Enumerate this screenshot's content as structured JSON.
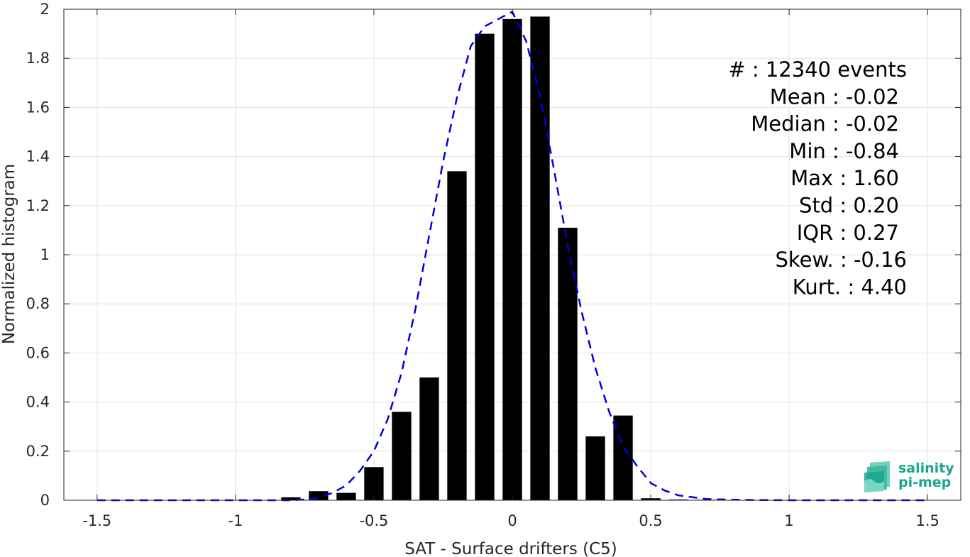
{
  "chart_data": {
    "type": "bar",
    "title": "",
    "xlabel": "SAT - Surface drifters (C5)",
    "ylabel": "Normalized histogram",
    "xlim": [
      -1.62,
      1.62
    ],
    "ylim": [
      0,
      2
    ],
    "xticks": [
      -1.5,
      -1,
      -0.5,
      0,
      0.5,
      1,
      1.5
    ],
    "xtick_labels": [
      "-1.5",
      "-1",
      "-0.5",
      "0",
      "0.5",
      "1",
      "1.5"
    ],
    "yticks": [
      0,
      0.2,
      0.4,
      0.6,
      0.8,
      1,
      1.2,
      1.4,
      1.6,
      1.8,
      2
    ],
    "ytick_labels": [
      "0",
      "0.2",
      "0.4",
      "0.6",
      "0.8",
      "1",
      "1.2",
      "1.4",
      "1.6",
      "1.8",
      "2"
    ],
    "grid": true,
    "bar_width": 0.07,
    "bars": {
      "x": [
        -0.8,
        -0.7,
        -0.6,
        -0.5,
        -0.4,
        -0.3,
        -0.2,
        -0.1,
        0.0,
        0.1,
        0.2,
        0.3,
        0.4,
        0.5,
        0.6,
        0.7,
        0.8
      ],
      "values": [
        0.012,
        0.037,
        0.03,
        0.135,
        0.36,
        0.5,
        1.34,
        1.9,
        1.96,
        1.97,
        1.11,
        0.26,
        0.345,
        0.008,
        0.003,
        0.002,
        0.001
      ],
      "color": "#000000"
    },
    "fit": {
      "style": "dashed",
      "color": "#0000dd",
      "x": [
        -1.5,
        -1.4,
        -1.3,
        -1.2,
        -1.1,
        -1.0,
        -0.9,
        -0.8,
        -0.75,
        -0.7,
        -0.65,
        -0.6,
        -0.55,
        -0.5,
        -0.45,
        -0.4,
        -0.35,
        -0.3,
        -0.25,
        -0.2,
        -0.15,
        -0.1,
        -0.05,
        0.0,
        0.05,
        0.1,
        0.15,
        0.2,
        0.25,
        0.3,
        0.35,
        0.4,
        0.45,
        0.5,
        0.55,
        0.6,
        0.7,
        0.8,
        0.9,
        1.0,
        1.2,
        1.5
      ],
      "y": [
        0,
        0,
        0,
        0,
        0,
        0,
        0,
        0.0,
        0.003,
        0.01,
        0.03,
        0.06,
        0.12,
        0.2,
        0.33,
        0.52,
        0.78,
        1.08,
        1.38,
        1.64,
        1.85,
        1.93,
        1.96,
        1.99,
        1.87,
        1.65,
        1.35,
        1.04,
        0.77,
        0.54,
        0.36,
        0.22,
        0.14,
        0.07,
        0.04,
        0.02,
        0.005,
        0.002,
        0.001,
        0,
        0,
        0
      ]
    },
    "stats_text": [
      "#  : 12340 events",
      "Mean : -0.02",
      "Median : -0.02",
      "Min : -0.84",
      "Max : 1.60",
      "Std : 0.20",
      "IQR : 0.27",
      "Skew. : -0.16",
      "Kurt. : 4.40"
    ]
  },
  "logo": {
    "line1": "salinity",
    "line2": "pi-mep",
    "color": "#1aa68f"
  }
}
